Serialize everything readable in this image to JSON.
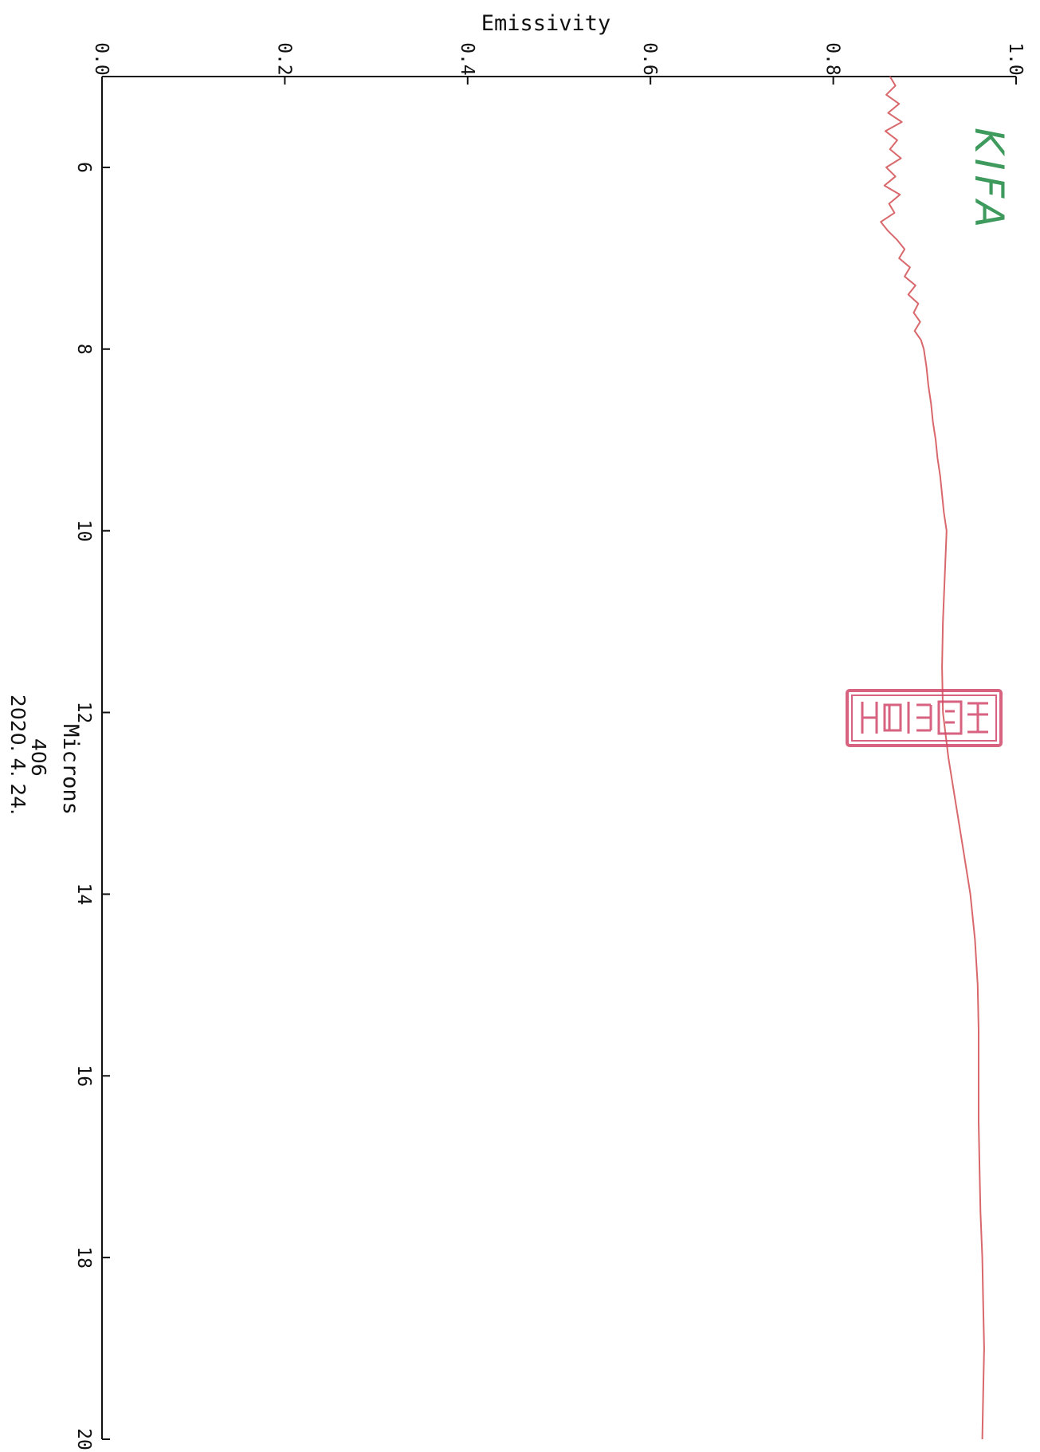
{
  "chart_data": {
    "type": "line",
    "title": "",
    "orientation": "rotated 90 degrees clockwise",
    "xlabel": "Microns",
    "ylabel": "Emissivity",
    "xlim": [
      5,
      20
    ],
    "ylim": [
      0.0,
      1.0
    ],
    "x_ticks": [
      "6",
      "8",
      "10",
      "12",
      "14",
      "16",
      "18",
      "20"
    ],
    "y_ticks": [
      "0.0",
      "0.2",
      "0.4",
      "0.6",
      "0.8",
      "1.0"
    ],
    "grid": false,
    "legend": "none",
    "series": [
      {
        "color": "#d9686c",
        "x": [
          5.0,
          5.1,
          5.2,
          5.3,
          5.4,
          5.5,
          5.6,
          5.7,
          5.8,
          5.9,
          6.0,
          6.1,
          6.2,
          6.3,
          6.4,
          6.5,
          6.6,
          6.7,
          6.8,
          6.9,
          7.0,
          7.1,
          7.2,
          7.3,
          7.4,
          7.5,
          7.6,
          7.7,
          7.8,
          7.9,
          8.0,
          8.2,
          8.4,
          8.6,
          8.8,
          9.0,
          9.2,
          9.4,
          9.6,
          9.8,
          10.0,
          10.5,
          11.0,
          11.5,
          12.0,
          12.5,
          13.0,
          13.5,
          14.0,
          14.5,
          15.0,
          15.5,
          16.0,
          16.5,
          17.0,
          17.5,
          18.0,
          18.5,
          19.0,
          19.5,
          20.0
        ],
        "y": [
          0.862,
          0.868,
          0.858,
          0.872,
          0.86,
          0.875,
          0.857,
          0.87,
          0.862,
          0.874,
          0.858,
          0.868,
          0.856,
          0.873,
          0.861,
          0.867,
          0.852,
          0.86,
          0.87,
          0.878,
          0.872,
          0.884,
          0.878,
          0.89,
          0.882,
          0.893,
          0.888,
          0.895,
          0.889,
          0.896,
          0.899,
          0.902,
          0.904,
          0.907,
          0.909,
          0.912,
          0.914,
          0.917,
          0.919,
          0.921,
          0.924,
          0.922,
          0.92,
          0.919,
          0.92,
          0.926,
          0.934,
          0.942,
          0.95,
          0.955,
          0.958,
          0.959,
          0.959,
          0.959,
          0.96,
          0.961,
          0.963,
          0.964,
          0.965,
          0.964,
          0.963
        ]
      }
    ]
  },
  "annotations": {
    "sample_number": "406",
    "date": "2020. 4. 24.",
    "watermark": "KIFA"
  },
  "stamp": {
    "color": "#d2486a",
    "text": "한국건설생활환경시험연구원"
  }
}
